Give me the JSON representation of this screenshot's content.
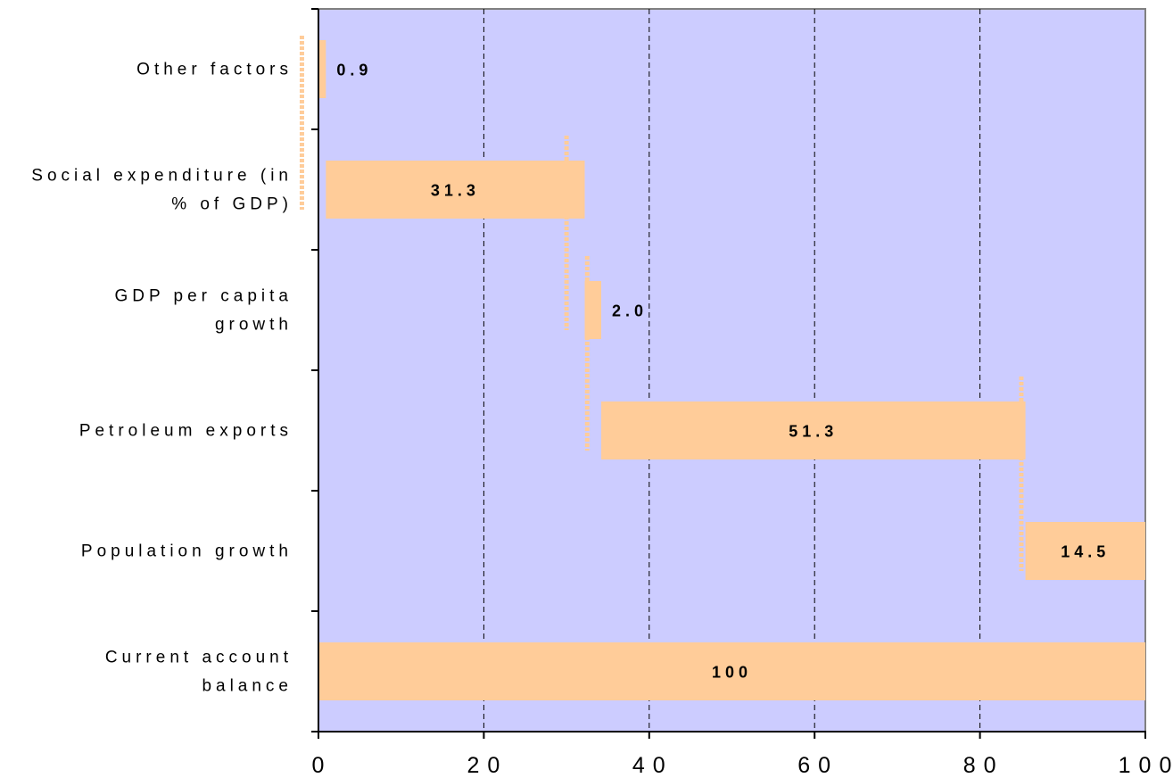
{
  "chart_data": {
    "type": "bar",
    "subtype": "waterfall-horizontal",
    "title": "",
    "xlabel": "",
    "ylabel": "",
    "xlim": [
      0,
      100
    ],
    "x_ticks": [
      0,
      20,
      40,
      60,
      80,
      100
    ],
    "x_tick_labels": [
      "0",
      "20",
      "40",
      "60",
      "80",
      "100"
    ],
    "grid": "vertical-dashed",
    "legend": "none",
    "colors": {
      "plot_background": "#ccccff",
      "bar": "#ffcc99",
      "connector": "#ffcc99",
      "plot_border": "#808080",
      "grid": "#000000"
    },
    "categories": [
      {
        "label_lines": [
          "Other factors"
        ],
        "start": 0,
        "value": 0.9,
        "label": "0.9",
        "label_placement": "outside"
      },
      {
        "label_lines": [
          "Social expenditure (in",
          "% of GDP)"
        ],
        "start": 0.9,
        "value": 31.3,
        "label": "31.3",
        "label_placement": "inside"
      },
      {
        "label_lines": [
          "GDP per capita",
          "growth"
        ],
        "start": 32.2,
        "value": 2.0,
        "label": "2.0",
        "label_placement": "outside"
      },
      {
        "label_lines": [
          "Petroleum exports"
        ],
        "start": 34.2,
        "value": 51.3,
        "label": "51.3",
        "label_placement": "inside"
      },
      {
        "label_lines": [
          "Population growth"
        ],
        "start": 85.5,
        "value": 14.5,
        "label": "14.5",
        "label_placement": "inside"
      },
      {
        "label_lines": [
          "Current account",
          "balance"
        ],
        "start": 0,
        "value": 100,
        "label": "100",
        "label_placement": "inside"
      }
    ],
    "connectors": [
      {
        "x": -2,
        "from_category": 0,
        "to_category": 1
      },
      {
        "x": 30,
        "from_category": 1,
        "to_category": 2
      },
      {
        "x": 32.5,
        "from_category": 2,
        "to_category": 3
      },
      {
        "x": 85,
        "from_category": 3,
        "to_category": 4
      }
    ]
  }
}
